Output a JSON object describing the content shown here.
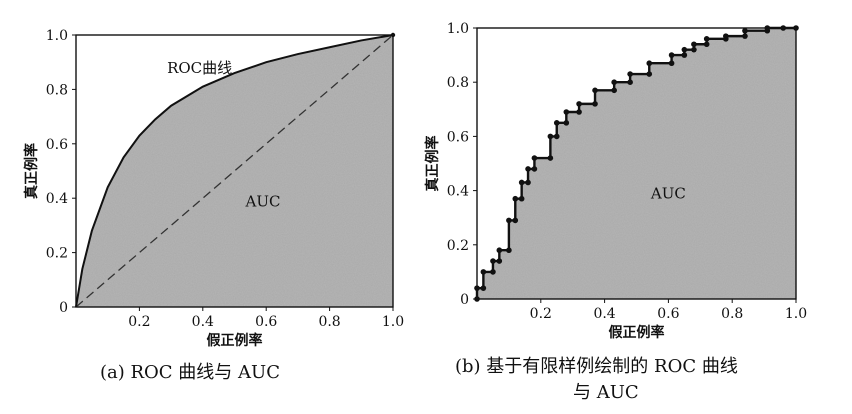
{
  "chart_data": [
    {
      "type": "area",
      "caption": "(a) ROC 曲线与 AUC",
      "xlabel": "假正例率",
      "ylabel": "真正例率",
      "xlim": [
        0,
        1
      ],
      "ylim": [
        0,
        1
      ],
      "xticks": [
        "0.2",
        "0.4",
        "0.6",
        "0.8",
        "1.0"
      ],
      "yticks": [
        "0",
        "0.2",
        "0.4",
        "0.6",
        "0.8",
        "1.0"
      ],
      "grid": false,
      "curve_label": "ROC曲线",
      "area_label": "AUC",
      "series": [
        {
          "kind": "curve",
          "x": [
            0,
            0.02,
            0.05,
            0.1,
            0.15,
            0.2,
            0.25,
            0.3,
            0.4,
            0.5,
            0.6,
            0.7,
            0.8,
            0.9,
            1.0
          ],
          "y": [
            0,
            0.14,
            0.28,
            0.44,
            0.55,
            0.63,
            0.69,
            0.74,
            0.81,
            0.86,
            0.9,
            0.93,
            0.955,
            0.98,
            1.0
          ]
        },
        {
          "kind": "diagonal",
          "x": [
            0,
            1
          ],
          "y": [
            0,
            1
          ]
        }
      ]
    },
    {
      "type": "area",
      "caption": "(b) 基于有限样例绘制的 ROC 曲线与 AUC",
      "xlabel": "假正例率",
      "ylabel": "真正例率",
      "xlim": [
        0,
        1
      ],
      "ylim": [
        0,
        1
      ],
      "xticks": [
        "0.2",
        "0.4",
        "0.6",
        "0.8",
        "1.0"
      ],
      "yticks": [
        "0",
        "0.2",
        "0.4",
        "0.6",
        "0.8",
        "1.0"
      ],
      "grid": false,
      "area_label": "AUC",
      "series": [
        {
          "kind": "step",
          "x": [
            0,
            0,
            0.02,
            0.02,
            0.05,
            0.05,
            0.07,
            0.07,
            0.1,
            0.1,
            0.12,
            0.12,
            0.14,
            0.14,
            0.16,
            0.16,
            0.18,
            0.18,
            0.23,
            0.23,
            0.25,
            0.25,
            0.28,
            0.28,
            0.32,
            0.32,
            0.37,
            0.37,
            0.43,
            0.43,
            0.48,
            0.48,
            0.54,
            0.54,
            0.61,
            0.61,
            0.65,
            0.65,
            0.68,
            0.68,
            0.72,
            0.72,
            0.78,
            0.78,
            0.84,
            0.84,
            0.91,
            0.91,
            0.96,
            0.96,
            1.0
          ],
          "y": [
            0,
            0.04,
            0.04,
            0.1,
            0.1,
            0.14,
            0.14,
            0.18,
            0.18,
            0.29,
            0.29,
            0.37,
            0.37,
            0.43,
            0.43,
            0.48,
            0.48,
            0.52,
            0.52,
            0.6,
            0.6,
            0.65,
            0.65,
            0.69,
            0.69,
            0.72,
            0.72,
            0.77,
            0.77,
            0.8,
            0.8,
            0.83,
            0.83,
            0.87,
            0.87,
            0.9,
            0.9,
            0.92,
            0.92,
            0.94,
            0.94,
            0.96,
            0.96,
            0.97,
            0.97,
            0.99,
            0.99,
            1.0,
            1.0,
            1.0,
            1.0
          ]
        }
      ]
    }
  ]
}
